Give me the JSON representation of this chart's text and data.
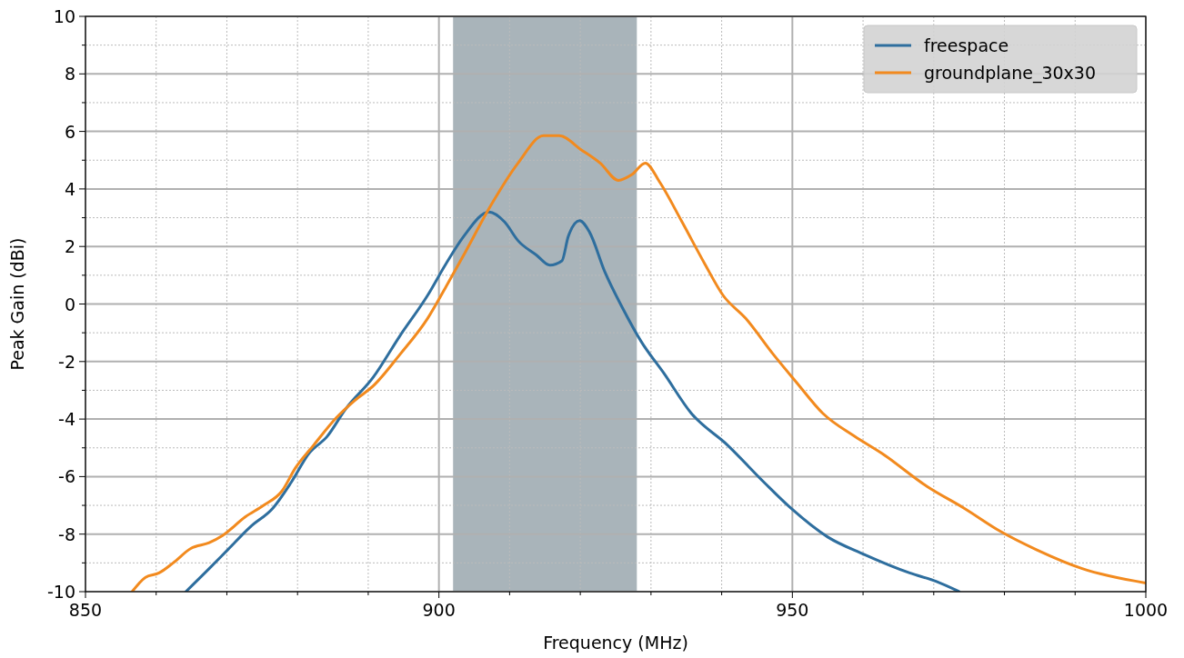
{
  "chart_data": {
    "type": "line",
    "xlabel": "Frequency (MHz)",
    "ylabel": "Peak Gain (dBi)",
    "xlim": [
      850,
      1000
    ],
    "xticks": [
      850,
      {
        "value": 860,
        "label": null
      },
      {
        "value": 870,
        "label": null
      },
      {
        "value": 880,
        "label": null
      },
      {
        "value": 890,
        "label": null
      },
      900,
      {
        "value": 910,
        "label": null
      },
      {
        "value": 920,
        "label": null
      },
      {
        "value": 930,
        "label": null
      },
      {
        "value": 940,
        "label": null
      },
      950,
      {
        "value": 960,
        "label": null
      },
      {
        "value": 970,
        "label": null
      },
      {
        "value": 980,
        "label": null
      },
      {
        "value": 990,
        "label": null
      },
      1000
    ],
    "ylim": [
      -10,
      10
    ],
    "yticks": [
      -10,
      {
        "value": -9,
        "label": null
      },
      -8,
      {
        "value": -7,
        "label": null
      },
      -6,
      {
        "value": -5,
        "label": null
      },
      -4,
      {
        "value": -3,
        "label": null
      },
      -2,
      {
        "value": -1,
        "label": null
      },
      0,
      {
        "value": 1,
        "label": null
      },
      2,
      {
        "value": 3,
        "label": null
      },
      4,
      {
        "value": 5,
        "label": null
      },
      6,
      {
        "value": 7,
        "label": null
      },
      8,
      {
        "value": 9,
        "label": null
      },
      10
    ],
    "grid": true,
    "legend": "top right",
    "line_style": "solid",
    "bands": [
      {
        "axis": "x",
        "from": 902,
        "to": 928,
        "color": "#a9b4ba"
      }
    ],
    "series": [
      {
        "name": "freespace",
        "color": "#2e6e9e",
        "x": [
          864.2,
          867.5,
          870.1,
          873.3,
          876.5,
          879.1,
          881.6,
          884.2,
          886.8,
          890.7,
          894.5,
          898.4,
          901,
          903.5,
          907.1,
          909.3,
          911.2,
          913.8,
          915.7,
          917.4,
          918.3,
          919.9,
          921.3,
          923.5,
          926,
          928.6,
          931.8,
          935.7,
          940.8,
          946,
          949.8,
          955,
          960.1,
          966.6,
          970.4,
          973.6
        ],
        "values": [
          -10,
          -9.2,
          -8.55,
          -7.75,
          -7.1,
          -6.2,
          -5.2,
          -4.6,
          -3.65,
          -2.55,
          -1.1,
          0.3,
          1.4,
          2.35,
          3.2,
          2.85,
          2.2,
          1.7,
          1.35,
          1.5,
          2.35,
          2.9,
          2.5,
          1.1,
          -0.15,
          -1.3,
          -2.4,
          -3.8,
          -4.9,
          -6.2,
          -7.1,
          -8.1,
          -8.7,
          -9.35,
          -9.65,
          -10
        ]
      },
      {
        "name": "groundplane_30x30",
        "color": "#f28a1e",
        "x": [
          856.6,
          858.5,
          860.4,
          862.4,
          864.9,
          867.5,
          869.4,
          872.6,
          875.2,
          877.8,
          879.7,
          882.3,
          885.5,
          888.1,
          890.7,
          894.5,
          898.4,
          901,
          903.5,
          907.4,
          911.2,
          914.8,
          917,
          920.2,
          922.8,
          925.4,
          927.3,
          929.2,
          931.2,
          934.4,
          937.6,
          940.2,
          943.4,
          947.3,
          950.5,
          954.3,
          958.8,
          962.7,
          969.1,
          974.3,
          979.4,
          984.6,
          991,
          1000
        ],
        "values": [
          -10,
          -9.5,
          -9.35,
          -9,
          -8.5,
          -8.3,
          -8.05,
          -7.4,
          -7,
          -6.5,
          -5.7,
          -4.9,
          -3.95,
          -3.35,
          -2.85,
          -1.75,
          -0.5,
          0.6,
          1.7,
          3.45,
          4.9,
          5.85,
          5.85,
          5.35,
          4.9,
          4.3,
          4.5,
          4.9,
          4.25,
          2.85,
          1.4,
          0.3,
          -0.5,
          -1.75,
          -2.7,
          -3.8,
          -4.6,
          -5.2,
          -6.35,
          -7.1,
          -7.9,
          -8.55,
          -9.2,
          -9.7
        ]
      }
    ]
  }
}
